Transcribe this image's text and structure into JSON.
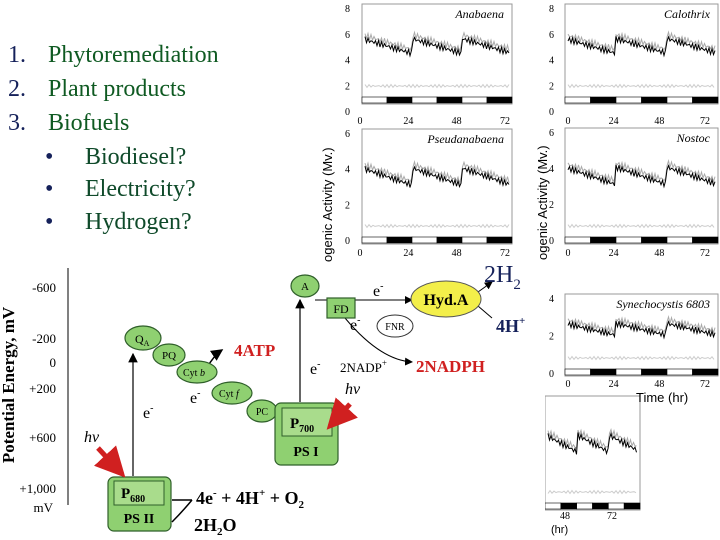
{
  "list": {
    "items": [
      {
        "marker": "1.",
        "text": "Phytoremediation"
      },
      {
        "marker": "2.",
        "text": "Plant products"
      },
      {
        "marker": "3.",
        "text": "Biofuels"
      }
    ],
    "bullet": "•",
    "sub_items": [
      "Biodiesel?",
      "Electricity?",
      "Hydrogen?"
    ]
  },
  "panels": [
    {
      "title": "Anabaena",
      "yticks": [
        8,
        6,
        4,
        2,
        0
      ],
      "xticks": [
        0,
        24,
        48,
        72
      ]
    },
    {
      "title": "Calothrix",
      "yticks": [
        8,
        6,
        4,
        2,
        0
      ],
      "xticks": [
        0,
        24,
        48,
        72
      ]
    },
    {
      "title": "Pseudanabaena",
      "yticks": [
        6,
        4,
        2,
        0
      ],
      "xticks": [
        0,
        24,
        48,
        72
      ]
    },
    {
      "title": "Nostoc",
      "yticks": [
        6,
        4,
        2,
        0
      ],
      "xticks": [
        0,
        24,
        48,
        72
      ]
    },
    {
      "title": "Synechocystis 6803",
      "yticks": [
        4,
        2,
        0
      ],
      "xticks": [
        0,
        24,
        48,
        72
      ]
    },
    {
      "xticks": [
        48,
        72
      ]
    }
  ],
  "panel_axis_label": "ogenic Activity (Mv.)",
  "time_label": "Time (hr)",
  "hr_label": "(hr)",
  "zscheme": {
    "axis_title": "Potential Energy, mV",
    "ticks": [
      "-600",
      "-200",
      "0",
      "+200",
      "+600",
      "+1,000"
    ],
    "unit": "mV",
    "qa": {
      "base": "Q",
      "sub": "A"
    },
    "pq": "PQ",
    "cytb": {
      "base": "Cyt ",
      "ital": "b"
    },
    "cytf": {
      "base": "Cyt ",
      "ital": "f"
    },
    "pc": "PC",
    "p700": {
      "base": "P",
      "sub": "700"
    },
    "ps1": "PS I",
    "p680": {
      "base": "P",
      "sub": "680"
    },
    "ps2": "PS II",
    "a": "A",
    "fd": "FD",
    "fnr": "FNR",
    "hyda": "Hyd.A",
    "atp": "4ATP",
    "electron": {
      "base": "e",
      "sup": "-"
    },
    "hv": "hν",
    "nadp": {
      "base": "2NADP",
      "sup": "+"
    },
    "nadph": "2NADPH",
    "h2": {
      "base": "2H",
      "sub": "2"
    },
    "hplus": {
      "base": "4H",
      "sup": "+"
    },
    "oxygen": {
      "e": "4e",
      "esup": "-",
      "mid": " + 4H",
      "hsup": "+",
      "o": " + O",
      "osub": "2"
    },
    "water": {
      "a": "2H",
      "sub": "2",
      "b": "O"
    }
  }
}
